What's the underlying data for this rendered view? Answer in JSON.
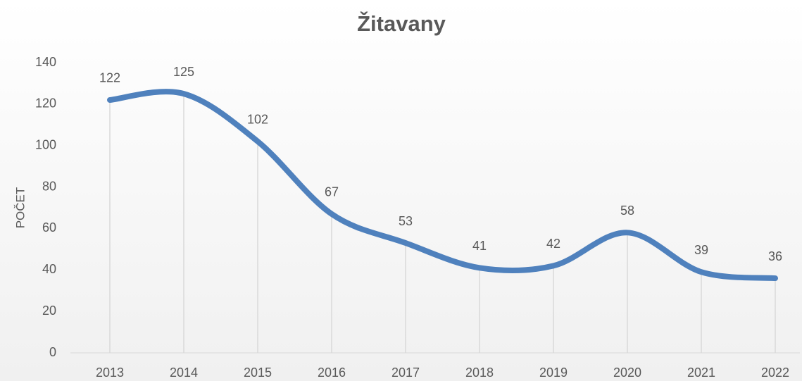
{
  "chart_data": {
    "type": "line",
    "title": "Žitavany",
    "y_label": "POČET",
    "categories": [
      "2013",
      "2014",
      "2015",
      "2016",
      "2017",
      "2018",
      "2019",
      "2020",
      "2021",
      "2022"
    ],
    "values": [
      122,
      125,
      102,
      67,
      53,
      41,
      42,
      58,
      39,
      36
    ],
    "color": "#4f81bd",
    "smooth": true,
    "drop_lines": true,
    "ylim": [
      0,
      140
    ],
    "yticks": [
      0,
      20,
      40,
      60,
      80,
      100,
      120,
      140
    ]
  }
}
